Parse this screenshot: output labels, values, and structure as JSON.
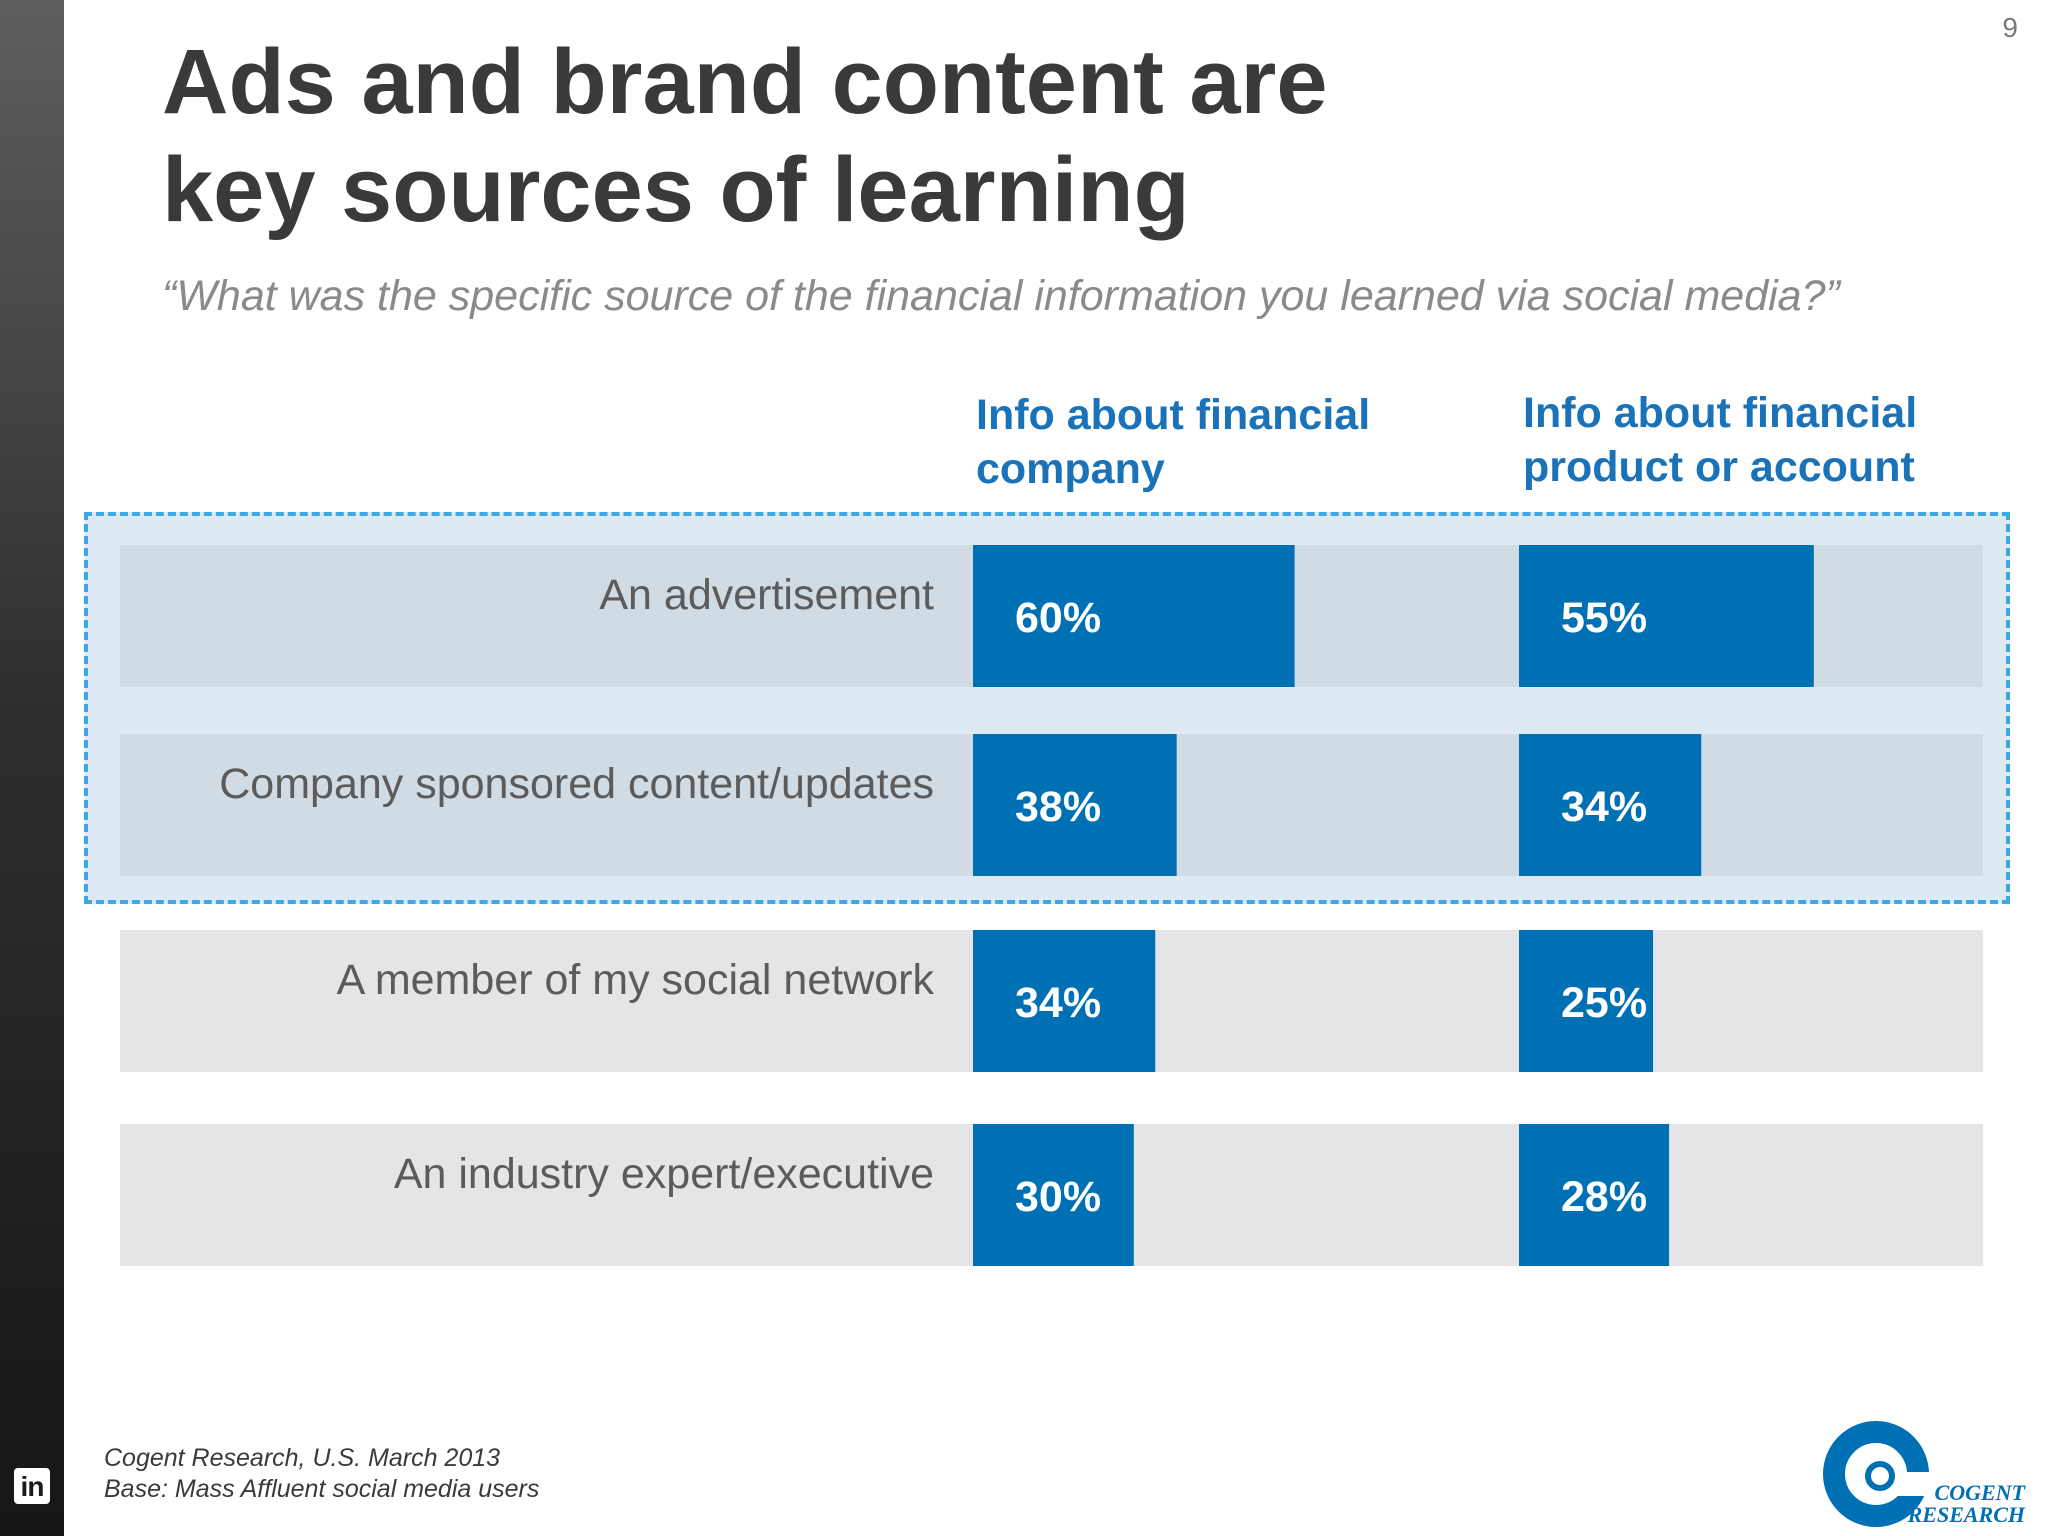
{
  "page": {
    "number": "9"
  },
  "header": {
    "title_line1": "Ads and brand content are",
    "title_line2": "key sources of learning",
    "subtitle": "“What was the specific source of the financial information you learned via social media?”"
  },
  "footer": {
    "source": "Cogent Research, U.S. March 2013",
    "base": "Base: Mass Affluent social media users"
  },
  "logo": {
    "line1": "COGENT",
    "line2": "RESEARCH"
  },
  "sidebar": {
    "icon": "linkedin-icon",
    "icon_text": "in"
  },
  "colors": {
    "bar": "#0070b4",
    "row_bg": "#e5e5e8",
    "row_bg_highlight": "#d0dbe4",
    "highlight_fill": "#dde9f3",
    "highlight_border": "#3aa9e6",
    "header_text": "#1a72b8"
  },
  "chart_data": {
    "type": "bar",
    "orientation": "horizontal",
    "categories": [
      "An advertisement",
      "Company sponsored content/updates",
      "A member of my social network",
      "An industry expert/executive"
    ],
    "series": [
      {
        "name": "Info about financial company",
        "values": [
          60,
          38,
          34,
          30
        ],
        "labels": [
          "60%",
          "38%",
          "34%",
          "30%"
        ]
      },
      {
        "name": "Info about financial product or account",
        "values": [
          55,
          34,
          25,
          28
        ],
        "labels": [
          "55%",
          "34%",
          "25%",
          "28%"
        ]
      }
    ],
    "column_headers": [
      {
        "line1": "Info about financial",
        "line2": "company"
      },
      {
        "line1": "Info about financial",
        "line2": "product or account"
      }
    ],
    "highlighted_categories": [
      0,
      1
    ],
    "xlim": [
      0,
      100
    ],
    "unit": "%",
    "title": "Ads and brand content are key sources of learning"
  }
}
